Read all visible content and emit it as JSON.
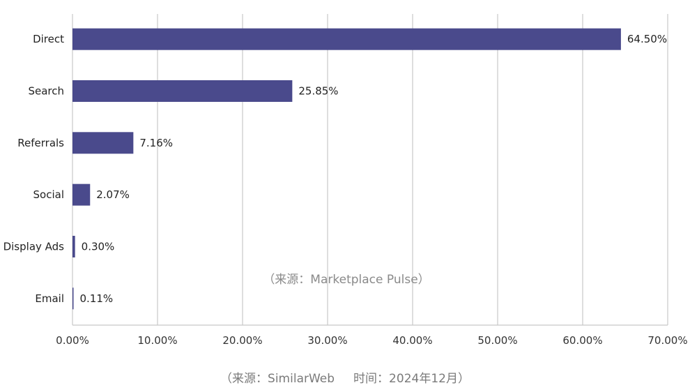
{
  "chart_data": {
    "type": "bar",
    "orientation": "horizontal",
    "categories": [
      "Direct",
      "Search",
      "Referrals",
      "Social",
      "Display Ads",
      "Email"
    ],
    "values": [
      64.5,
      25.85,
      7.16,
      2.07,
      0.3,
      0.11
    ],
    "data_labels": [
      "64.50%",
      "25.85%",
      "7.16%",
      "2.07%",
      "0.30%",
      "0.11%"
    ],
    "xlim": [
      0,
      70
    ],
    "x_ticks": [
      0,
      10,
      20,
      30,
      40,
      50,
      60,
      70
    ],
    "x_tick_labels": [
      "0.00%",
      "10.00%",
      "20.00%",
      "30.00%",
      "40.00%",
      "50.00%",
      "60.00%",
      "70.00%"
    ],
    "grid": "vertical",
    "annotation": "（来源：Marketplace Pulse）",
    "bar_color": "#4a4a8c",
    "grid_color": "#c8c8c8"
  },
  "source_note": "（来源：SimilarWeb     时间：2024年12月）"
}
